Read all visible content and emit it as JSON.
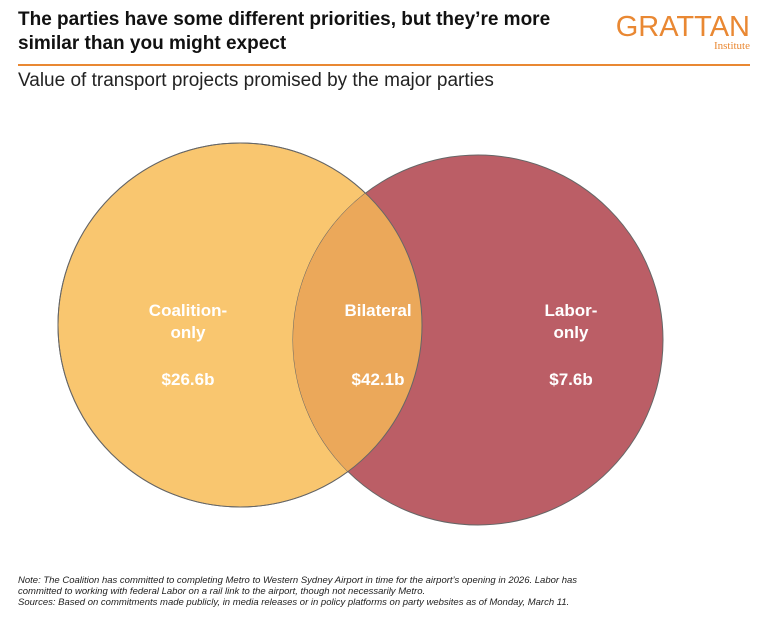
{
  "header": {
    "headline": "The parties have some different priorities, but they’re more similar than you might expect",
    "subtitle": "Value of transport projects promised by the major parties"
  },
  "logo": {
    "name": "GRATTAN",
    "sub": "Institute"
  },
  "venn": {
    "coalition": {
      "label_line1": "Coalition-",
      "label_line2": "only",
      "value": "$26.6b",
      "color": "#f9c66f"
    },
    "bilateral": {
      "label": "Bilateral",
      "value": "$42.1b",
      "color": "#eba85a"
    },
    "labor": {
      "label_line1": "Labor-",
      "label_line2": "only",
      "value": "$7.6b",
      "color": "#bb5e66"
    }
  },
  "footer": {
    "note_line1": "Note: The Coalition has committed to completing Metro to Western Sydney Airport in time for the airport’s opening in 2026. Labor has",
    "note_line2": "committed to working with federal Labor on a rail link to the airport, though not necessarily Metro.",
    "sources": "Sources: Based on commitments made publicly, in media releases or in policy platforms on party websites as of Monday, March 11."
  }
}
